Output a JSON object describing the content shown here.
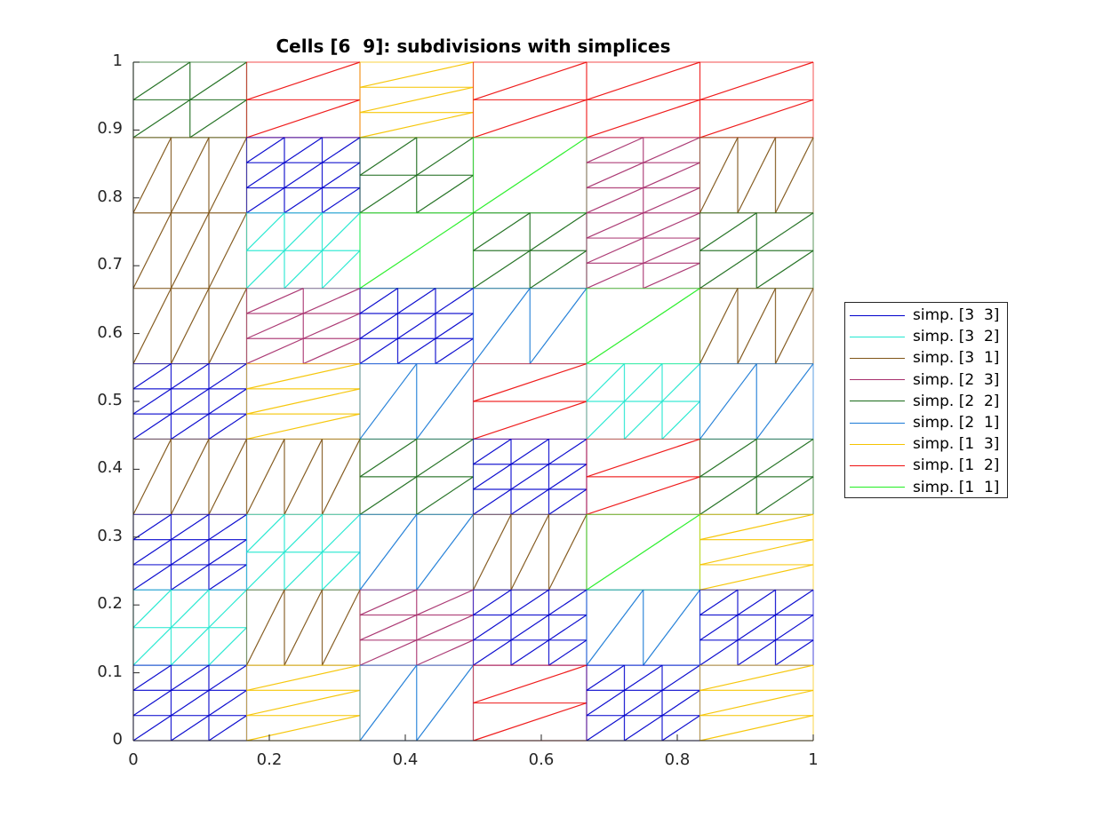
{
  "chart_data": {
    "type": "line",
    "title": "Cells [6  9]: subdivisions with simplices",
    "xlabel": "",
    "ylabel": "",
    "xlim": [
      0,
      1
    ],
    "ylim": [
      0,
      1
    ],
    "grid": false,
    "legend_position": "east-outside",
    "x_ticks": [
      "0",
      "0.2",
      "0.4",
      "0.6",
      "0.8",
      "1"
    ],
    "x_tick_values": [
      0,
      0.2,
      0.4,
      0.6,
      0.8,
      1
    ],
    "y_ticks": [
      "0",
      "0.1",
      "0.2",
      "0.3",
      "0.4",
      "0.5",
      "0.6",
      "0.7",
      "0.8",
      "0.9",
      "1"
    ],
    "y_tick_values": [
      0,
      0.1,
      0.2,
      0.3,
      0.4,
      0.5,
      0.6,
      0.7,
      0.8,
      0.9,
      1
    ],
    "grid_cells": {
      "nx": 6,
      "ny": 9
    },
    "series": [
      {
        "name": "simp. [3  3]",
        "color": "#0000cc",
        "subdiv": [
          3,
          3
        ]
      },
      {
        "name": "simp. [3  2]",
        "color": "#22e8d0",
        "subdiv": [
          3,
          2
        ]
      },
      {
        "name": "simp. [3  1]",
        "color": "#7f5417",
        "subdiv": [
          3,
          1
        ]
      },
      {
        "name": "simp. [2  3]",
        "color": "#a8306e",
        "subdiv": [
          2,
          3
        ]
      },
      {
        "name": "simp. [2  2]",
        "color": "#1a6b1a",
        "subdiv": [
          2,
          2
        ]
      },
      {
        "name": "simp. [2  1]",
        "color": "#1a7ad6",
        "subdiv": [
          2,
          1
        ]
      },
      {
        "name": "simp. [1  3]",
        "color": "#f5c400",
        "subdiv": [
          1,
          3
        ]
      },
      {
        "name": "simp. [1  2]",
        "color": "#ee1111",
        "subdiv": [
          1,
          2
        ]
      },
      {
        "name": "simp. [1  1]",
        "color": "#22ee22",
        "subdiv": [
          1,
          1
        ]
      }
    ],
    "cell_types_rows_top_to_bottom": [
      [
        "2 2",
        "1 2",
        "1 3",
        "1 2",
        "1 2",
        "1 2"
      ],
      [
        "3 1",
        "3 3",
        "2 2",
        "1 1",
        "2 3",
        "3 1"
      ],
      [
        "3 1",
        "3 2",
        "1 1",
        "2 2",
        "2 3",
        "2 2"
      ],
      [
        "3 1",
        "2 3",
        "3 3",
        "2 1",
        "1 1",
        "3 1"
      ],
      [
        "3 3",
        "1 3",
        "2 1",
        "1 2",
        "3 2",
        "2 1"
      ],
      [
        "3 1",
        "3 1",
        "2 2",
        "3 3",
        "1 2",
        "2 2"
      ],
      [
        "3 3",
        "3 2",
        "2 1",
        "3 1",
        "1 1",
        "1 3"
      ],
      [
        "3 2",
        "3 1",
        "2 3",
        "3 3",
        "2 1",
        "3 3"
      ],
      [
        "3 3",
        "1 3",
        "2 1",
        "1 2",
        "3 3",
        "1 3"
      ]
    ]
  },
  "colors": {
    "axis": "#262626",
    "background": "#ffffff"
  }
}
